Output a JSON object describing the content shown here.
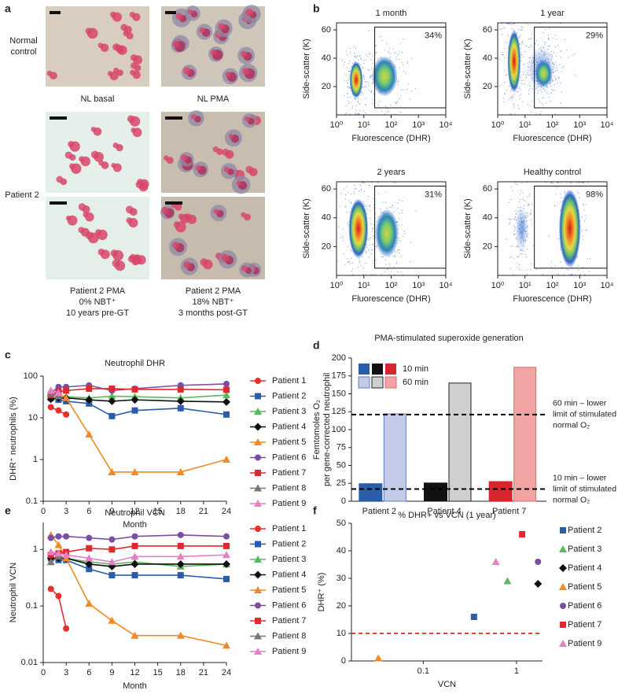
{
  "panel_labels": [
    "a",
    "b",
    "c",
    "d",
    "e",
    "f"
  ],
  "panel_a": {
    "row_labels": [
      [
        "Normal",
        "control"
      ],
      [
        "Patient 2"
      ]
    ],
    "top_captions": [
      "NL basal",
      "NL PMA"
    ],
    "bottom_captions": [
      [
        "Patient 2 PMA",
        "0% NBT⁺",
        "10 years pre-GT"
      ],
      [
        "Patient 2 PMA",
        "18% NBT⁺",
        "3 months post-GT"
      ]
    ]
  },
  "chart_data": [
    {
      "type": "density",
      "title": "1 month",
      "annotation": "34%",
      "xlabel": "Fluorescence (DHR)",
      "ylabel": "Side-scatter (K)",
      "log_x": true,
      "xlim": [
        1,
        10000
      ],
      "xticks": [
        {
          "value": 1,
          "label": "10⁰"
        },
        {
          "value": 10,
          "label": "10¹"
        },
        {
          "value": 100,
          "label": "10²"
        },
        {
          "value": 1000,
          "label": "10³"
        },
        {
          "value": 10000,
          "label": "10⁴"
        }
      ],
      "ylim": [
        0,
        65
      ],
      "yticks": [
        20,
        40,
        60
      ],
      "gate": {
        "xlim": [
          25,
          10000
        ],
        "ylim": [
          5,
          62
        ]
      }
    },
    {
      "type": "density",
      "title": "1 year",
      "annotation": "29%",
      "xlabel": "Fluorescence (DHR)",
      "ylabel": "Side-scatter (K)",
      "log_x": true,
      "xlim": [
        1,
        10000
      ],
      "xticks": [
        {
          "value": 1,
          "label": "10⁰"
        },
        {
          "value": 10,
          "label": "10¹"
        },
        {
          "value": 100,
          "label": "10²"
        },
        {
          "value": 1000,
          "label": "10³"
        },
        {
          "value": 10000,
          "label": "10⁴"
        }
      ],
      "ylim": [
        0,
        65
      ],
      "yticks": [
        20,
        40,
        60
      ],
      "gate": {
        "xlim": [
          22,
          10000
        ],
        "ylim": [
          5,
          62
        ]
      }
    },
    {
      "type": "density",
      "title": "2 years",
      "annotation": "31%",
      "xlabel": "Fluorescence (DHR)",
      "ylabel": "Side-scatter (K)",
      "log_x": true,
      "xlim": [
        1,
        10000
      ],
      "xticks": [
        {
          "value": 1,
          "label": "10⁰"
        },
        {
          "value": 10,
          "label": "10¹"
        },
        {
          "value": 100,
          "label": "10²"
        },
        {
          "value": 1000,
          "label": "10³"
        },
        {
          "value": 10000,
          "label": "10⁴"
        }
      ],
      "ylim": [
        0,
        65
      ],
      "yticks": [
        20,
        40,
        60
      ],
      "gate": {
        "xlim": [
          25,
          10000
        ],
        "ylim": [
          5,
          62
        ]
      }
    },
    {
      "type": "density",
      "title": "Healthy control",
      "annotation": "98%",
      "xlabel": "Fluorescence (DHR)",
      "ylabel": "Side-scatter (K)",
      "log_x": true,
      "xlim": [
        1,
        10000
      ],
      "xticks": [
        {
          "value": 1,
          "label": "10⁰"
        },
        {
          "value": 10,
          "label": "10¹"
        },
        {
          "value": 100,
          "label": "10²"
        },
        {
          "value": 1000,
          "label": "10³"
        },
        {
          "value": 10000,
          "label": "10⁴"
        }
      ],
      "ylim": [
        0,
        65
      ],
      "yticks": [
        20,
        40,
        60
      ],
      "gate": {
        "xlim": [
          22,
          10000
        ],
        "ylim": [
          5,
          62
        ]
      }
    },
    {
      "type": "line",
      "title": "Neutrophil DHR",
      "xlabel": "Month",
      "ylabel": "DHR⁺ neutrophils (%)",
      "log_y": true,
      "xlim": [
        0,
        24
      ],
      "xticks": [
        0,
        3,
        6,
        9,
        12,
        15,
        18,
        21,
        24
      ],
      "ylim": [
        0.1,
        100
      ],
      "yticks": [
        0.1,
        1,
        10,
        100
      ],
      "series": [
        {
          "name": "Patient 1",
          "color": "#e8302a",
          "marker": "circle",
          "x": [
            1,
            2,
            3
          ],
          "values": [
            18,
            15,
            12
          ]
        },
        {
          "name": "Patient 2",
          "color": "#2a5caa",
          "marker": "square",
          "x": [
            1,
            2,
            3,
            6,
            9,
            12,
            18,
            24
          ],
          "values": [
            30,
            27,
            25,
            22,
            11,
            15,
            17,
            12
          ]
        },
        {
          "name": "Patient 3",
          "color": "#5cb85c",
          "marker": "triangle",
          "x": [
            1,
            2,
            3,
            6,
            9,
            12,
            18,
            24
          ],
          "values": [
            40,
            35,
            32,
            30,
            33,
            32,
            30,
            35
          ]
        },
        {
          "name": "Patient 4",
          "color": "#111111",
          "marker": "diamond",
          "x": [
            1,
            2,
            3,
            6,
            9,
            12,
            18,
            24
          ],
          "values": [
            28,
            30,
            30,
            27,
            25,
            27,
            25,
            24
          ]
        },
        {
          "name": "Patient 5",
          "color": "#f08a24",
          "marker": "triangle",
          "x": [
            1,
            2,
            3,
            6,
            9,
            12,
            18,
            24
          ],
          "values": [
            45,
            38,
            30,
            4,
            0.5,
            0.5,
            0.5,
            1
          ]
        },
        {
          "name": "Patient 6",
          "color": "#7b4ea3",
          "marker": "circle",
          "x": [
            1,
            2,
            3,
            6,
            9,
            12,
            18,
            24
          ],
          "values": [
            40,
            55,
            55,
            60,
            45,
            50,
            60,
            65
          ]
        },
        {
          "name": "Patient 7",
          "color": "#e0282e",
          "marker": "square",
          "x": [
            1,
            2,
            3,
            6,
            9,
            12,
            18,
            24
          ],
          "values": [
            35,
            42,
            45,
            50,
            50,
            48,
            48,
            47
          ]
        },
        {
          "name": "Patient 8",
          "color": "#777777",
          "marker": "triangle",
          "x": [
            1,
            2
          ],
          "values": [
            38,
            33
          ]
        },
        {
          "name": "Patient 9",
          "color": "#e87fc4",
          "marker": "triangle",
          "x": [
            1,
            2
          ],
          "values": [
            45,
            40
          ]
        }
      ]
    },
    {
      "type": "bar",
      "title": "PMA-stimulated superoxide generation",
      "ylabel": [
        "Femtomoles O₂",
        "per gene-corrected neutrophil"
      ],
      "categories": [
        "Patient 2",
        "Patient 4",
        "Patient 7"
      ],
      "ylim": [
        0,
        200
      ],
      "yticks": [
        0,
        25,
        50,
        75,
        100,
        125,
        150,
        175,
        200
      ],
      "series": [
        {
          "name": "10 min",
          "colors": [
            "#2a5caa",
            "#111111",
            "#d7262d"
          ],
          "values": [
            25,
            26,
            28
          ]
        },
        {
          "name": "60 min",
          "colors": [
            "#c3cbe8",
            "#cfcfcf",
            "#f2a3a3"
          ],
          "edge_colors": [
            "#5f7cc0",
            "#222222",
            "#e26a6a"
          ],
          "values": [
            122,
            165,
            187
          ]
        }
      ],
      "reference_lines": [
        {
          "value": 121,
          "label": [
            "60 min – lower",
            "limit of stimulated",
            "normal O₂"
          ]
        },
        {
          "value": 17,
          "label": [
            "10 min – lower",
            "limit of stimulated",
            "normal O₂"
          ]
        }
      ]
    },
    {
      "type": "line",
      "title": "Neutrophil VCN",
      "xlabel": "Month",
      "ylabel": "Neutrophil VCN",
      "log_y": true,
      "xlim": [
        0,
        24
      ],
      "xticks": [
        0,
        3,
        6,
        9,
        12,
        15,
        18,
        21,
        24
      ],
      "ylim": [
        0.01,
        3
      ],
      "yticks": [
        0.01,
        0.1,
        1
      ],
      "series": [
        {
          "name": "Patient 1",
          "color": "#e8302a",
          "marker": "circle",
          "x": [
            1,
            2,
            3
          ],
          "values": [
            0.2,
            0.15,
            0.04
          ]
        },
        {
          "name": "Patient 2",
          "color": "#2a5caa",
          "marker": "square",
          "x": [
            1,
            2,
            3,
            6,
            9,
            12,
            18,
            24
          ],
          "values": [
            0.7,
            0.65,
            0.65,
            0.45,
            0.35,
            0.35,
            0.35,
            0.3
          ]
        },
        {
          "name": "Patient 3",
          "color": "#5cb85c",
          "marker": "triangle",
          "x": [
            1,
            2,
            3,
            6,
            9,
            12,
            18,
            24
          ],
          "values": [
            0.9,
            0.8,
            0.7,
            0.6,
            0.55,
            0.6,
            0.5,
            0.55
          ]
        },
        {
          "name": "Patient 4",
          "color": "#111111",
          "marker": "diamond",
          "x": [
            1,
            2,
            3,
            6,
            9,
            12,
            18,
            24
          ],
          "values": [
            0.7,
            0.7,
            0.7,
            0.55,
            0.5,
            0.55,
            0.55,
            0.55
          ]
        },
        {
          "name": "Patient 5",
          "color": "#f08a24",
          "marker": "triangle",
          "x": [
            1,
            2,
            3,
            6,
            9,
            12,
            18,
            24
          ],
          "values": [
            1.8,
            1.2,
            0.7,
            0.11,
            0.055,
            0.03,
            0.03,
            0.02
          ]
        },
        {
          "name": "Patient 6",
          "color": "#7b4ea3",
          "marker": "circle",
          "x": [
            1,
            2,
            3,
            6,
            9,
            12,
            18,
            24
          ],
          "values": [
            1.6,
            1.7,
            1.7,
            1.6,
            1.5,
            1.7,
            1.8,
            1.7
          ]
        },
        {
          "name": "Patient 7",
          "color": "#e0282e",
          "marker": "square",
          "x": [
            1,
            2,
            3,
            6,
            9,
            12,
            18,
            24
          ],
          "values": [
            0.8,
            0.85,
            0.9,
            1.05,
            1,
            1.15,
            1.15,
            1.15
          ]
        },
        {
          "name": "Patient 8",
          "color": "#777777",
          "marker": "triangle",
          "x": [
            1,
            2
          ],
          "values": [
            0.6,
            0.75
          ]
        },
        {
          "name": "Patient 9",
          "color": "#e87fc4",
          "marker": "triangle",
          "x": [
            1,
            2,
            3,
            6,
            9,
            12,
            18,
            24
          ],
          "values": [
            0.9,
            0.85,
            0.8,
            0.7,
            0.6,
            0.75,
            0.75,
            0.8
          ]
        }
      ]
    },
    {
      "type": "scatter",
      "title": "% DHR+ vs VCN (1 year)",
      "xlabel": "VCN",
      "ylabel": "DHR⁺ (%)",
      "log_x": true,
      "xlim": [
        0.017,
        1.9
      ],
      "xticks": [
        0.1,
        1
      ],
      "ylim": [
        0,
        50
      ],
      "yticks": [
        0,
        10,
        20,
        30,
        40,
        50
      ],
      "reference_line": {
        "value": 10,
        "color": "#e02020"
      },
      "series": [
        {
          "name": "Patient 2",
          "color": "#2a5caa",
          "marker": "square",
          "x": [
            0.35
          ],
          "values": [
            16
          ]
        },
        {
          "name": "Patient 3",
          "color": "#5cb85c",
          "marker": "triangle",
          "x": [
            0.8
          ],
          "values": [
            29
          ]
        },
        {
          "name": "Patient 4",
          "color": "#111111",
          "marker": "diamond",
          "x": [
            1.7
          ],
          "values": [
            28
          ]
        },
        {
          "name": "Patient 5",
          "color": "#f08a24",
          "marker": "triangle",
          "x": [
            0.033
          ],
          "values": [
            1
          ]
        },
        {
          "name": "Patient 6",
          "color": "#7b4ea3",
          "marker": "circle",
          "x": [
            1.7
          ],
          "values": [
            36
          ]
        },
        {
          "name": "Patient 7",
          "color": "#e0282e",
          "marker": "square",
          "x": [
            1.15
          ],
          "values": [
            46
          ]
        },
        {
          "name": "Patient 9",
          "color": "#e87fc4",
          "marker": "triangle",
          "x": [
            0.6
          ],
          "values": [
            36
          ]
        }
      ]
    }
  ]
}
